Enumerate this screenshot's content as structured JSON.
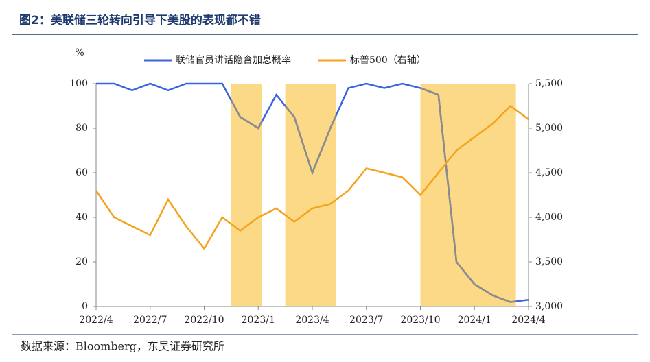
{
  "chart_data": {
    "type": "line",
    "title": "图2：美联储三轮转向引导下美股的表现都不错",
    "source": "数据来源：Bloomberg，东吴证券研究所",
    "y_label": "%",
    "categories": [
      "2022/4",
      null,
      null,
      "2022/7",
      null,
      null,
      "2022/10",
      null,
      null,
      "2023/1",
      null,
      null,
      "2023/4",
      null,
      null,
      "2023/7",
      null,
      null,
      "2023/10",
      null,
      null,
      "2024/1",
      null,
      null,
      "2024/4"
    ],
    "series": [
      {
        "name": "联储官员讲话隐含加息概率",
        "color": "#3b63e0",
        "values": [
          100,
          100,
          97,
          100,
          97,
          100,
          100,
          100,
          85,
          80,
          95,
          85,
          60,
          80,
          98,
          100,
          98,
          100,
          98,
          95,
          20,
          10,
          5,
          2,
          3
        ]
      },
      {
        "name": "标普500（右轴）",
        "color": "#f5a21e",
        "axis": "y2",
        "values": [
          4300,
          4000,
          3900,
          3800,
          4200,
          3900,
          3650,
          4000,
          3850,
          4000,
          4100,
          3950,
          4100,
          4150,
          4300,
          4550,
          4500,
          4450,
          4250,
          4500,
          4750,
          4900,
          5050,
          5250,
          5100
        ]
      }
    ],
    "shaded_periods": [
      [
        7.5,
        9.2
      ],
      [
        10.5,
        13.3
      ],
      [
        18,
        23.3
      ]
    ],
    "shade_color": "#fbd986",
    "shaded_line_color": "#8c8c8c",
    "ylim": [
      0,
      100
    ],
    "yticks": [
      0,
      20,
      40,
      60,
      80,
      100
    ],
    "y2lim": [
      3000,
      5500
    ],
    "y2ticks": [
      {
        "value": 3000,
        "label": "3,000"
      },
      {
        "value": 3500,
        "label": "3,500"
      },
      {
        "value": 4000,
        "label": "4,000"
      },
      {
        "value": 4500,
        "label": "4,500"
      },
      {
        "value": 5000,
        "label": "5,000"
      },
      {
        "value": 5500,
        "label": "5,500"
      }
    ]
  }
}
